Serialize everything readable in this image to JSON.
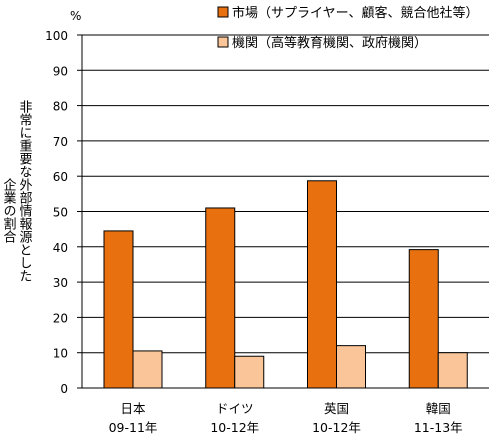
{
  "chart_data": {
    "type": "bar",
    "unit_label": "%",
    "ylabel_lines": [
      "非常に重要な外部情報源とした",
      "企業の割合"
    ],
    "categories": [
      {
        "name": "日本",
        "period": "09-11年"
      },
      {
        "name": "ドイツ",
        "period": "10-12年"
      },
      {
        "name": "英国",
        "period": "10-12年"
      },
      {
        "name": "韓国",
        "period": "11-13年"
      }
    ],
    "series": [
      {
        "name": "市場（サプライヤー、顧客、競合他社等）",
        "color": "#e8700f",
        "values": [
          44.5,
          51,
          58.7,
          39.2
        ]
      },
      {
        "name": "機関（高等教育機関、政府機関）",
        "color": "#fbc59a",
        "values": [
          10.5,
          9,
          12,
          10
        ]
      }
    ],
    "ylim": [
      0,
      100
    ],
    "yticks": [
      0,
      10,
      20,
      30,
      40,
      50,
      60,
      70,
      80,
      90,
      100
    ],
    "grid": true,
    "legend_position": "top-right"
  }
}
